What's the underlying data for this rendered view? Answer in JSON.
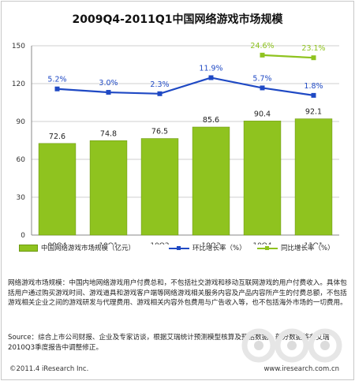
{
  "title": "2009Q4-2011Q1中国网络游戏市场规模",
  "chart_data": {
    "type": "bar",
    "categories": [
      "09Q4",
      "10Q1",
      "10Q2",
      "10Q3",
      "10Q4",
      "11Q1"
    ],
    "ylim": [
      0,
      150
    ],
    "yticks": [
      0,
      30,
      60,
      90,
      120,
      150
    ],
    "grid": true,
    "legend_position": "bottom",
    "series": [
      {
        "name": "中国网络游戏市场规模（亿元）",
        "type": "bar",
        "color": "#8fc31f",
        "values": [
          72.6,
          74.8,
          76.5,
          85.6,
          90.4,
          92.1
        ],
        "labels": [
          "72.6",
          "74.8",
          "76.5",
          "85.6",
          "90.4",
          "92.1"
        ]
      },
      {
        "name": "环比增长率（%）",
        "type": "line",
        "color": "#1f49c4",
        "values": [
          115.8,
          113.1,
          112.0,
          124.7,
          116.6,
          110.7
        ],
        "labels": [
          "5.2%",
          "3.0%",
          "2.3%",
          "11.9%",
          "5.7%",
          "1.8%"
        ]
      },
      {
        "name": "同比增长率（%）",
        "type": "line",
        "color": "#8fc31f",
        "values": [
          null,
          null,
          null,
          null,
          142.6,
          140.5
        ],
        "labels": [
          null,
          null,
          null,
          null,
          "24.6%",
          "23.1%"
        ]
      }
    ]
  },
  "description": "网络游戏市场规模：中国内地网络游戏用户付费总和，不包括社交游戏和移动互联网游戏的用户付费收入。具体包括用户通过购买游戏时间、游戏道具和游戏客户端等网络游戏相关服务内容及产品内容所产生的付费总额，不包括游戏相关企业之间的游戏研发与代理费用、游戏相关内容外包费用与广告收入等，也不包括海外市场的一切费用。",
  "source": "Source：综合上市公司财报、企业及专家访谈，根据艾瑞统计预测模型核算及预估数据，部分数据将在艾瑞2010Q3季度报告中调整修正。",
  "copyright": "©2011.4 iResearch Inc.",
  "website": "www.iresearch.com.cn"
}
